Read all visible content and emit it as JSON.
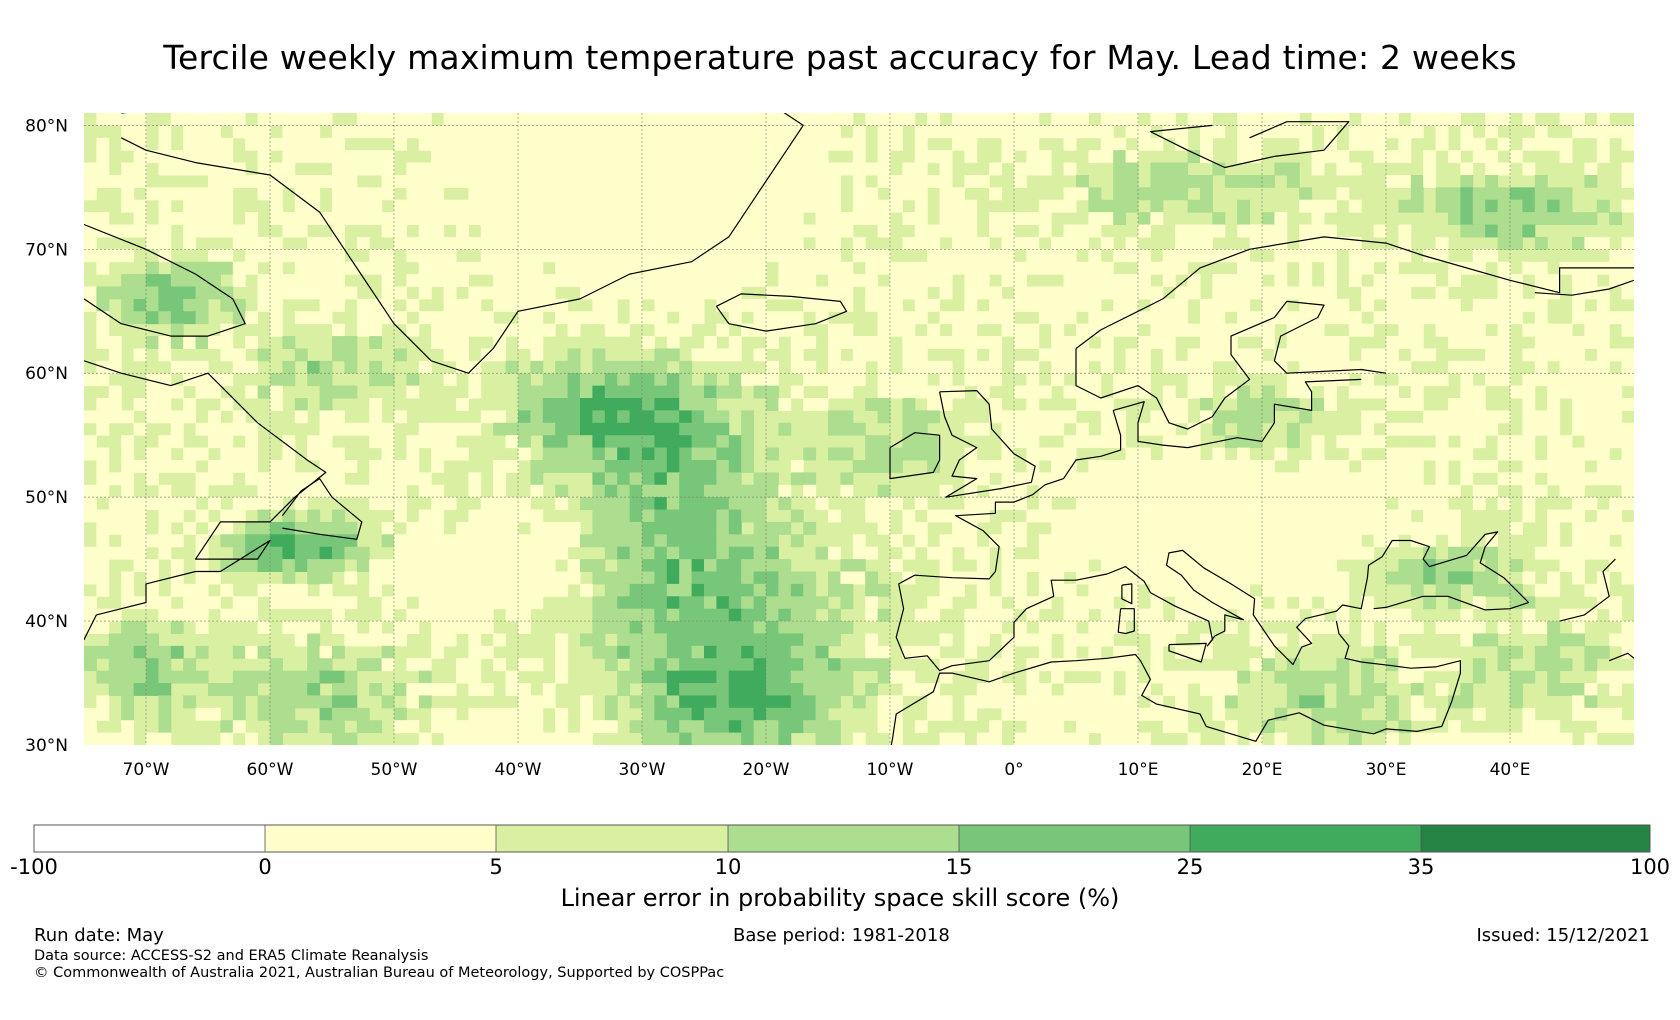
{
  "title": "Tercile weekly maximum temperature past accuracy for May. Lead time: 2 weeks",
  "map": {
    "lat_labels": [
      "80°N",
      "70°N",
      "60°N",
      "50°N",
      "40°N",
      "30°N"
    ],
    "lon_labels": [
      "70°W",
      "60°W",
      "50°W",
      "40°W",
      "30°W",
      "20°W",
      "10°W",
      "0°",
      "10°E",
      "20°E",
      "30°E",
      "40°E"
    ]
  },
  "colorbar": {
    "title": "Linear error in probability space skill score (%)",
    "ticks": [
      "-100",
      "0",
      "5",
      "10",
      "15",
      "25",
      "35",
      "100"
    ],
    "colors": [
      "#ffffff",
      "#ffffcc",
      "#d9f0a3",
      "#addd8e",
      "#78c679",
      "#41ab5d",
      "#238443"
    ]
  },
  "footer": {
    "run_date": "Run date: May",
    "base_period": "Base period: 1981-2018",
    "issued": "Issued: 15/12/2021",
    "data_source": "Data source: ACCESS-S2 and ERA5 Climate Reanalysis",
    "copyright": "© Commonwealth of Australia 2021, Australian Bureau of Meteorology, Supported by COSPPac"
  }
}
